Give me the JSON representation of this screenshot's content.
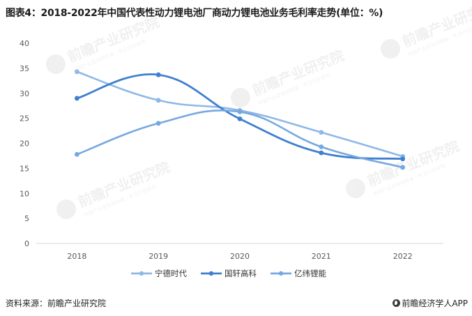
{
  "title": "图表4：2018-2022年中国代表性动力锂电池厂商动力锂电池业务毛利率走势(单位：%)",
  "source_label": "资料来源：前瞻产业研究院",
  "brand_label": "前瞻经济学人APP",
  "watermark": {
    "text": "前瞻产业研究院",
    "subtext": "中国产业咨询领导者 · 专注行业研究"
  },
  "colors": {
    "宁德时代": "#8fb8e6",
    "国轩高科": "#3f7fcf",
    "亿纬锂能": "#76a8e0",
    "axis": "#d9d9d9"
  },
  "chart_data": {
    "type": "line",
    "title": "图表4：2018-2022年中国代表性动力锂电池厂商动力锂电池业务毛利率走势(单位：%)",
    "xlabel": "",
    "ylabel": "",
    "categories": [
      "2018",
      "2019",
      "2020",
      "2021",
      "2022"
    ],
    "ylim": [
      0,
      40
    ],
    "yticks": [
      0,
      5,
      10,
      15,
      20,
      25,
      30,
      35,
      40
    ],
    "grid": false,
    "legend_position": "bottom",
    "smooth": true,
    "series": [
      {
        "name": "宁德时代",
        "values": [
          34.3,
          28.6,
          26.6,
          22.2,
          17.4
        ]
      },
      {
        "name": "国轩高科",
        "values": [
          29.0,
          33.7,
          24.9,
          18.1,
          16.9
        ]
      },
      {
        "name": "亿纬锂能",
        "values": [
          17.8,
          24.0,
          26.3,
          19.3,
          15.2
        ]
      }
    ]
  }
}
